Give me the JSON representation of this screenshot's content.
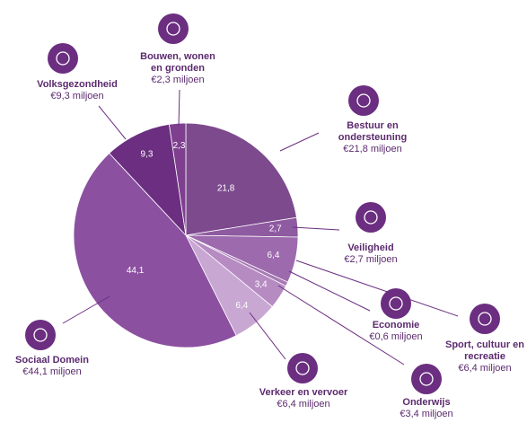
{
  "chart_data": {
    "type": "pie",
    "categories": [
      "Bestuur en\nondersteuning",
      "Veiligheid",
      "Sport, cultuur en\nrecreatie",
      "Economie",
      "Onderwijs",
      "Verkeer en vervoer",
      "Sociaal Domein",
      "Volksgezondheid",
      "Bouwen, wonen\nen gronden"
    ],
    "values": [
      21.8,
      2.7,
      6.4,
      0.6,
      3.4,
      6.4,
      44.1,
      9.3,
      2.3
    ],
    "value_labels": [
      "21,8",
      "2,7",
      "6,4",
      null,
      "3,4",
      "6,4",
      "44,1",
      "9,3",
      "2,3"
    ],
    "callout_labels": [
      "€21,8 miljoen",
      "€2,7 miljoen",
      "€6,4 miljoen",
      "€0,6 miljoen",
      "€3,4 miljoen",
      "€6,4 miljoen",
      "€44,1 miljoen",
      "€9,3 miljoen",
      "€2,3 miljoen"
    ],
    "colors": [
      "#7d4a8e",
      "#8e5aa0",
      "#9c6aad",
      "#a77bb5",
      "#b68bc2",
      "#c9a7d3",
      "#8b50a0",
      "#6b2e80",
      "#7e3f8f"
    ]
  }
}
